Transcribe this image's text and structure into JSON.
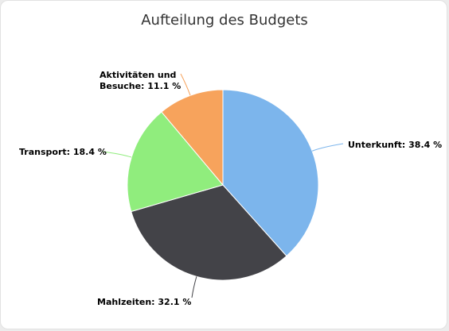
{
  "chart_data": {
    "type": "pie",
    "title": "Aufteilung des Budgets",
    "slices": [
      {
        "label": "Unterkunft",
        "value": 38.4,
        "display": "Unterkunft: 38.4 %",
        "color": "#7cb5ec"
      },
      {
        "label": "Mahlzeiten",
        "value": 32.1,
        "display": "Mahlzeiten: 32.1 %",
        "color": "#434348"
      },
      {
        "label": "Transport",
        "value": 18.4,
        "display": "Transport: 18.4 %",
        "color": "#90ed7d"
      },
      {
        "label": "Aktivitäten und Besuche",
        "value": 11.1,
        "display_lines": [
          "Aktivitäten und",
          "Besuche: 11.1 %"
        ],
        "color": "#f7a35c"
      }
    ]
  }
}
